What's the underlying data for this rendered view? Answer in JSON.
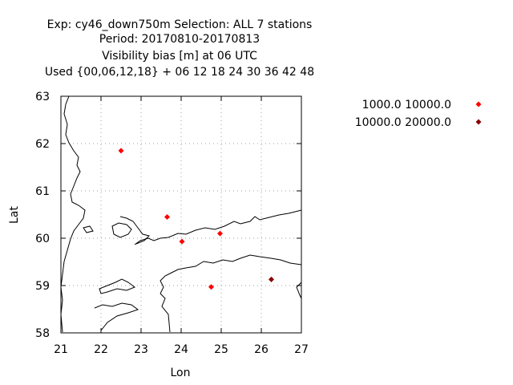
{
  "title_lines": [
    "Exp: cy46_down750m   Selection: ALL      7 stations",
    "Period: 20170810-20170813",
    "Visibility bias [m] at  06 UTC",
    "Used {00,06,12,18} + 06 12 18 24 30 36 42 48"
  ],
  "chart_data": {
    "type": "scatter",
    "xlabel": "Lon",
    "ylabel": "Lat",
    "xlim": [
      21,
      27
    ],
    "ylim": [
      58,
      63
    ],
    "xticks": [
      "21",
      "22",
      "23",
      "24",
      "25",
      "26",
      "27"
    ],
    "yticks": [
      "58",
      "59",
      "60",
      "61",
      "62",
      "63"
    ],
    "grid": true,
    "legend_position": "top-right",
    "series": [
      {
        "name": "1000.0 10000.0",
        "color": "#ff0000",
        "points": [
          {
            "x": 22.5,
            "y": 61.85
          },
          {
            "x": 23.65,
            "y": 60.45
          },
          {
            "x": 24.02,
            "y": 59.93
          },
          {
            "x": 24.97,
            "y": 60.1
          },
          {
            "x": 24.75,
            "y": 58.97
          }
        ]
      },
      {
        "name": "10000.0 20000.0",
        "color": "#8b0000",
        "points": [
          {
            "x": 26.25,
            "y": 59.13
          }
        ]
      }
    ]
  }
}
